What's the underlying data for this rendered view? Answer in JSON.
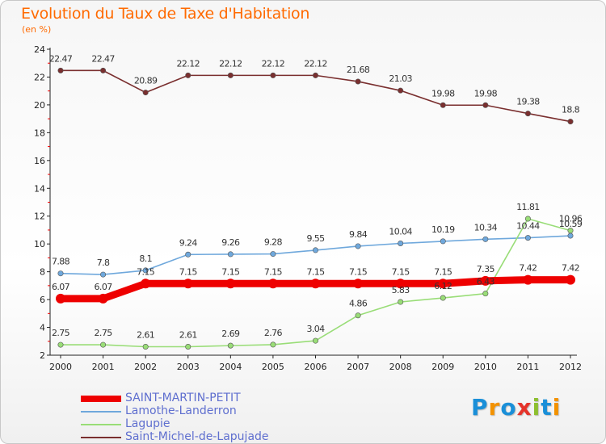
{
  "title": "Evolution du Taux de Taxe d'Habitation",
  "unit": "(en %)",
  "logo": {
    "letters": [
      "P",
      "r",
      "o",
      "x",
      "i",
      "t",
      "i"
    ],
    "colors": [
      "#1a8fd8",
      "#f39200",
      "#1a8fd8",
      "#e5332a",
      "#8dbf2f",
      "#1a8fd8",
      "#f39200"
    ]
  },
  "chart_data": {
    "type": "line",
    "categories": [
      "2000",
      "2001",
      "2002",
      "2003",
      "2004",
      "2005",
      "2006",
      "2007",
      "2008",
      "2009",
      "2010",
      "2011",
      "2012"
    ],
    "ylim": [
      2,
      24
    ],
    "yticks": [
      "2",
      "4",
      "6",
      "8",
      "10",
      "12",
      "14",
      "16",
      "18",
      "20",
      "22",
      "24"
    ],
    "grid": false,
    "legend_position": "bottom-left",
    "series": [
      {
        "name": "SAINT-MARTIN-PETIT",
        "color": "#ee0000",
        "style": "thick",
        "values": [
          6.07,
          6.07,
          7.15,
          7.15,
          7.15,
          7.15,
          7.15,
          7.15,
          7.15,
          7.15,
          7.35,
          7.42,
          7.42
        ],
        "labels": [
          "6.07",
          "6.07",
          "7.15",
          "7.15",
          "7.15",
          "7.15",
          "7.15",
          "7.15",
          "7.15",
          "7.15",
          "7.35",
          "7.42",
          "7.42"
        ]
      },
      {
        "name": "Lamothe-Landerron",
        "color": "#6fa8dc",
        "style": "thin",
        "values": [
          7.88,
          7.8,
          8.1,
          9.24,
          9.26,
          9.28,
          9.55,
          9.84,
          10.04,
          10.19,
          10.34,
          10.44,
          10.59
        ],
        "labels": [
          "7.88",
          "7.8",
          "8.1",
          "9.24",
          "9.26",
          "9.28",
          "9.55",
          "9.84",
          "10.04",
          "10.19",
          "10.34",
          "10.44",
          "10.59"
        ]
      },
      {
        "name": "Lagupie",
        "color": "#99dd77",
        "style": "thin",
        "values": [
          2.75,
          2.75,
          2.61,
          2.61,
          2.69,
          2.76,
          3.04,
          4.86,
          5.83,
          6.12,
          6.43,
          11.81,
          10.96
        ],
        "labels": [
          "2.75",
          "2.75",
          "2.61",
          "2.61",
          "2.69",
          "2.76",
          "3.04",
          "4.86",
          "5.83",
          "6.12",
          "6.43",
          "11.81",
          "10.96"
        ]
      },
      {
        "name": "Saint-Michel-de-Lapujade",
        "color": "#7a2f2f",
        "style": "thin",
        "values": [
          22.47,
          22.47,
          20.89,
          22.12,
          22.12,
          22.12,
          22.12,
          21.68,
          21.03,
          19.98,
          19.98,
          19.38,
          18.8
        ],
        "labels": [
          "22.47",
          "22.47",
          "20.89",
          "22.12",
          "22.12",
          "22.12",
          "22.12",
          "21.68",
          "21.03",
          "19.98",
          "19.98",
          "19.38",
          "18.8"
        ]
      }
    ]
  }
}
